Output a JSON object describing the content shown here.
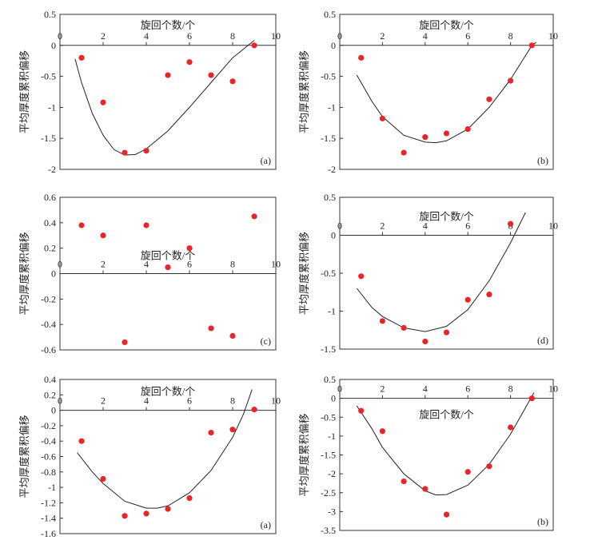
{
  "chart_data": [
    {
      "type": "scatter",
      "xlabel": "旋回个数/个",
      "ylabel": "平均厚度累积偏移",
      "panel_label": "(a)",
      "color": "#e8262a",
      "xlim": [
        0,
        10
      ],
      "xticks": [
        0,
        2,
        4,
        6,
        8,
        10
      ],
      "ylim": [
        -2,
        0.5
      ],
      "yticks": [
        0.5,
        0,
        -0.5,
        -1,
        -1.5,
        -2
      ],
      "points": {
        "x": [
          1,
          2,
          3,
          4,
          5,
          6,
          7,
          8,
          9
        ],
        "values": [
          -0.2,
          -0.92,
          -1.73,
          -1.7,
          -0.48,
          -0.27,
          -0.48,
          -0.58,
          0
        ]
      },
      "curve": {
        "x": [
          0.7,
          1,
          1.5,
          2,
          2.5,
          3,
          3.5,
          4,
          5,
          6,
          7,
          8,
          9
        ],
        "values": [
          -0.22,
          -0.6,
          -1.1,
          -1.45,
          -1.68,
          -1.77,
          -1.76,
          -1.67,
          -1.38,
          -1.0,
          -0.6,
          -0.2,
          0.08
        ]
      }
    },
    {
      "type": "scatter",
      "xlabel": "旋回个数/个",
      "ylabel": "平均厚度累积偏移",
      "panel_label": "(b)",
      "color": "#e8262a",
      "xlim": [
        0,
        10
      ],
      "xticks": [
        0,
        2,
        4,
        6,
        8,
        10
      ],
      "ylim": [
        -2,
        0.5
      ],
      "yticks": [
        0.5,
        0,
        -0.5,
        -1,
        -1.5,
        -2
      ],
      "points": {
        "x": [
          1,
          2,
          3,
          4,
          5,
          6,
          7,
          8,
          9
        ],
        "values": [
          -0.2,
          -1.18,
          -1.73,
          -1.48,
          -1.42,
          -1.35,
          -0.87,
          -0.57,
          0
        ]
      },
      "curve": {
        "x": [
          0.8,
          1.5,
          2,
          3,
          4,
          4.5,
          5,
          6,
          7,
          8,
          9,
          9.2
        ],
        "values": [
          -0.48,
          -0.9,
          -1.15,
          -1.45,
          -1.56,
          -1.57,
          -1.54,
          -1.35,
          -1.0,
          -0.55,
          0,
          0.05
        ]
      }
    },
    {
      "type": "scatter",
      "xlabel": "旋回个数/个",
      "ylabel": "平均厚度累积偏移",
      "panel_label": "(c)",
      "color": "#e8262a",
      "xlim": [
        0,
        10
      ],
      "xticks": [
        0,
        2,
        4,
        6,
        8,
        10
      ],
      "ylim": [
        -0.6,
        0.6
      ],
      "yticks": [
        0.6,
        0.4,
        0.2,
        0,
        -0.2,
        -0.4,
        -0.6
      ],
      "points": {
        "x": [
          1,
          2,
          3,
          4,
          5,
          6,
          7,
          8,
          9
        ],
        "values": [
          0.38,
          0.3,
          -0.54,
          0.38,
          0.05,
          0.2,
          -0.43,
          -0.49,
          0.45
        ]
      }
    },
    {
      "type": "scatter",
      "xlabel": "旋回个数/个",
      "ylabel": "平均厚度累积偏移",
      "panel_label": "(d)",
      "color": "#e8262a",
      "xlim": [
        0,
        10
      ],
      "xticks": [
        0,
        2,
        4,
        6,
        8,
        10
      ],
      "ylim": [
        -1.5,
        0.5
      ],
      "yticks": [
        0.5,
        0,
        -0.5,
        -1,
        -1.5
      ],
      "points": {
        "x": [
          1,
          2,
          3,
          4,
          5,
          6,
          7,
          8
        ],
        "values": [
          -0.54,
          -1.13,
          -1.22,
          -1.4,
          -1.28,
          -0.85,
          -0.78,
          0.15
        ]
      },
      "curve": {
        "x": [
          0.8,
          1.5,
          2,
          3,
          4,
          5,
          6,
          7,
          8,
          8.7
        ],
        "values": [
          -0.7,
          -0.95,
          -1.07,
          -1.22,
          -1.27,
          -1.2,
          -0.98,
          -0.6,
          -0.1,
          0.3
        ]
      }
    },
    {
      "type": "scatter",
      "xlabel": "旋回个数/个",
      "ylabel": "平均厚度累积偏移",
      "panel_label": "(a)",
      "color": "#e8262a",
      "xlim": [
        0,
        10
      ],
      "xticks": [
        0,
        2,
        4,
        6,
        8,
        10
      ],
      "ylim": [
        -1.6,
        0.4
      ],
      "yticks": [
        0.4,
        0.2,
        0,
        -0.2,
        -0.4,
        -0.6,
        -0.8,
        -1,
        -1.2,
        -1.4,
        -1.6
      ],
      "points": {
        "x": [
          1,
          2,
          3,
          4,
          5,
          6,
          7,
          8,
          9
        ],
        "values": [
          -0.4,
          -0.89,
          -1.37,
          -1.34,
          -1.28,
          -1.14,
          -0.29,
          -0.25,
          0.01
        ]
      },
      "curve": {
        "x": [
          0.8,
          1.5,
          2,
          3,
          4,
          4.5,
          5,
          6,
          7,
          8,
          8.5,
          8.9
        ],
        "values": [
          -0.55,
          -0.8,
          -0.95,
          -1.18,
          -1.27,
          -1.27,
          -1.24,
          -1.07,
          -0.78,
          -0.35,
          -0.05,
          0.27
        ]
      }
    },
    {
      "type": "scatter",
      "xlabel": "旋回个数/个",
      "ylabel": "平均厚度累积偏移",
      "panel_label": "(b)",
      "color": "#e8262a",
      "xlim": [
        0,
        10
      ],
      "xticks": [
        0,
        2,
        4,
        6,
        8,
        10
      ],
      "ylim": [
        -3.5,
        0.5
      ],
      "yticks": [
        0.5,
        0,
        -0.5,
        -1,
        -1.5,
        -2,
        -2.5,
        -3,
        -3.5
      ],
      "points": {
        "x": [
          1,
          2,
          3,
          4,
          5,
          6,
          7,
          8,
          9
        ],
        "values": [
          -0.33,
          -0.87,
          -2.2,
          -2.4,
          -3.08,
          -1.95,
          -1.8,
          -0.77,
          0
        ]
      },
      "curve": {
        "x": [
          0.8,
          1.5,
          2,
          3,
          4,
          4.5,
          5,
          6,
          7,
          8,
          9,
          9.1
        ],
        "values": [
          -0.2,
          -0.8,
          -1.3,
          -2.0,
          -2.45,
          -2.56,
          -2.55,
          -2.3,
          -1.75,
          -0.95,
          0.05,
          0.15
        ]
      }
    }
  ]
}
